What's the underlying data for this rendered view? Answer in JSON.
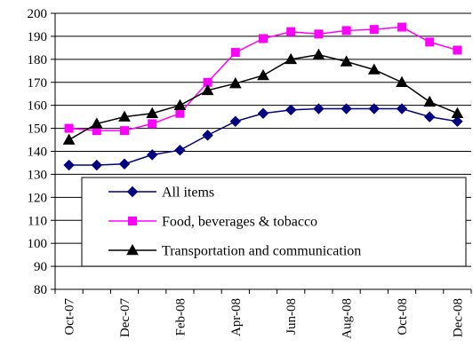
{
  "chart_data": {
    "type": "line",
    "title": "",
    "xlabel": "",
    "ylabel": "",
    "ylim": [
      80,
      200
    ],
    "yticks": [
      80,
      90,
      100,
      110,
      120,
      130,
      140,
      150,
      160,
      170,
      180,
      190,
      200
    ],
    "grid": "horizontal",
    "legend_position": "lower-center",
    "x": [
      "Oct-07",
      "Nov-07",
      "Dec-07",
      "Jan-08",
      "Feb-08",
      "Mar-08",
      "Apr-08",
      "May-08",
      "Jun-08",
      "Jul-08",
      "Aug-08",
      "Sep-08",
      "Oct-08",
      "Nov-08",
      "Dec-08"
    ],
    "x_tick_labels": [
      "Oct-07",
      "Dec-07",
      "Feb-08",
      "Apr-08",
      "Jun-08",
      "Aug-08",
      "Oct-08",
      "Dec-08"
    ],
    "series": [
      {
        "name": "All items",
        "color": "#000080",
        "marker": "diamond",
        "values": [
          134,
          134,
          134.5,
          138.5,
          140.5,
          147,
          153,
          156.5,
          158,
          158.5,
          158.5,
          158.5,
          158.5,
          155,
          153
        ]
      },
      {
        "name": "Food, beverages & tobacco",
        "color": "#FF00FF",
        "marker": "square",
        "values": [
          150,
          149,
          149,
          152,
          156.5,
          170,
          183,
          189,
          192,
          191,
          192.5,
          193,
          194,
          187.5,
          184
        ]
      },
      {
        "name": "Transportation and communication",
        "color": "#000000",
        "marker": "triangle",
        "values": [
          145,
          152,
          155,
          156.5,
          160,
          166.5,
          169.5,
          173,
          180,
          182,
          179,
          175.5,
          170,
          161.5,
          156.5
        ]
      }
    ]
  }
}
